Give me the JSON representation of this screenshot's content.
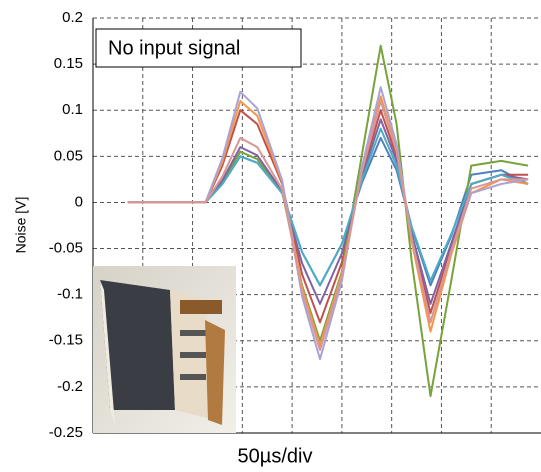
{
  "chart_data": {
    "type": "line",
    "annotation": "No input signal",
    "ylabel": "Noise [V]",
    "xlabel": "50µs/div",
    "x": [
      35,
      80,
      113,
      130,
      148,
      165,
      190,
      210,
      228,
      250,
      270,
      289,
      305,
      320,
      339,
      360,
      380,
      410,
      437
    ],
    "xlim": [
      0,
      450
    ],
    "xticks": [
      50,
      100,
      150,
      200,
      250,
      300,
      350,
      400
    ],
    "ylim": [
      -0.25,
      0.2
    ],
    "yticks": [
      0.2,
      0.15,
      0.1,
      0.05,
      0,
      -0.05,
      -0.1,
      -0.15,
      -0.2,
      -0.25
    ],
    "grid": true,
    "series": [
      {
        "color": "#4f81bd",
        "values": [
          0,
          0,
          0,
          0.02,
          0.05,
          0.043,
          0.01,
          -0.054,
          -0.09,
          -0.045,
          0.021,
          0.07,
          0.035,
          -0.027,
          -0.09,
          -0.036,
          0.03,
          0.035,
          0.02
        ]
      },
      {
        "color": "#c0504d",
        "values": [
          0,
          0,
          0,
          0.04,
          0.1,
          0.085,
          0.02,
          -0.078,
          -0.13,
          -0.065,
          0.03,
          0.1,
          0.05,
          -0.036,
          -0.12,
          -0.048,
          0.02,
          0.03,
          0.03
        ]
      },
      {
        "color": "#77a33a",
        "values": [
          0,
          0,
          0,
          0.022,
          0.055,
          0.047,
          0.011,
          -0.09,
          -0.15,
          -0.075,
          0.051,
          0.17,
          0.085,
          -0.063,
          -0.21,
          -0.084,
          0.04,
          0.045,
          0.04
        ]
      },
      {
        "color": "#8064a2",
        "values": [
          0,
          0,
          0,
          0.024,
          0.06,
          0.051,
          0.012,
          -0.066,
          -0.11,
          -0.055,
          0.027,
          0.09,
          0.045,
          -0.033,
          -0.11,
          -0.044,
          0.02,
          0.03,
          0.025
        ]
      },
      {
        "color": "#4bacc6",
        "values": [
          0,
          0,
          0,
          0.02,
          0.05,
          0.043,
          0.01,
          -0.054,
          -0.09,
          -0.045,
          0.024,
          0.08,
          0.04,
          -0.026,
          -0.085,
          -0.034,
          0.02,
          0.03,
          0.02
        ]
      },
      {
        "color": "#f79646",
        "values": [
          0,
          0,
          0,
          0.044,
          0.11,
          0.094,
          0.022,
          -0.093,
          -0.155,
          -0.078,
          0.035,
          0.115,
          0.058,
          -0.042,
          -0.14,
          -0.056,
          0.01,
          0.025,
          0.02
        ]
      },
      {
        "color": "#a9a3d6",
        "values": [
          0,
          0,
          0,
          0.048,
          0.12,
          0.102,
          0.024,
          -0.102,
          -0.17,
          -0.085,
          0.038,
          0.125,
          0.063,
          -0.039,
          -0.13,
          -0.052,
          0.01,
          0.02,
          0.025
        ]
      },
      {
        "color": "#d99694",
        "values": [
          0,
          0,
          0,
          0.028,
          0.07,
          0.06,
          0.014,
          -0.096,
          -0.16,
          -0.08,
          0.033,
          0.11,
          0.055,
          -0.039,
          -0.13,
          -0.052,
          0.015,
          0.025,
          0.025
        ]
      }
    ]
  }
}
